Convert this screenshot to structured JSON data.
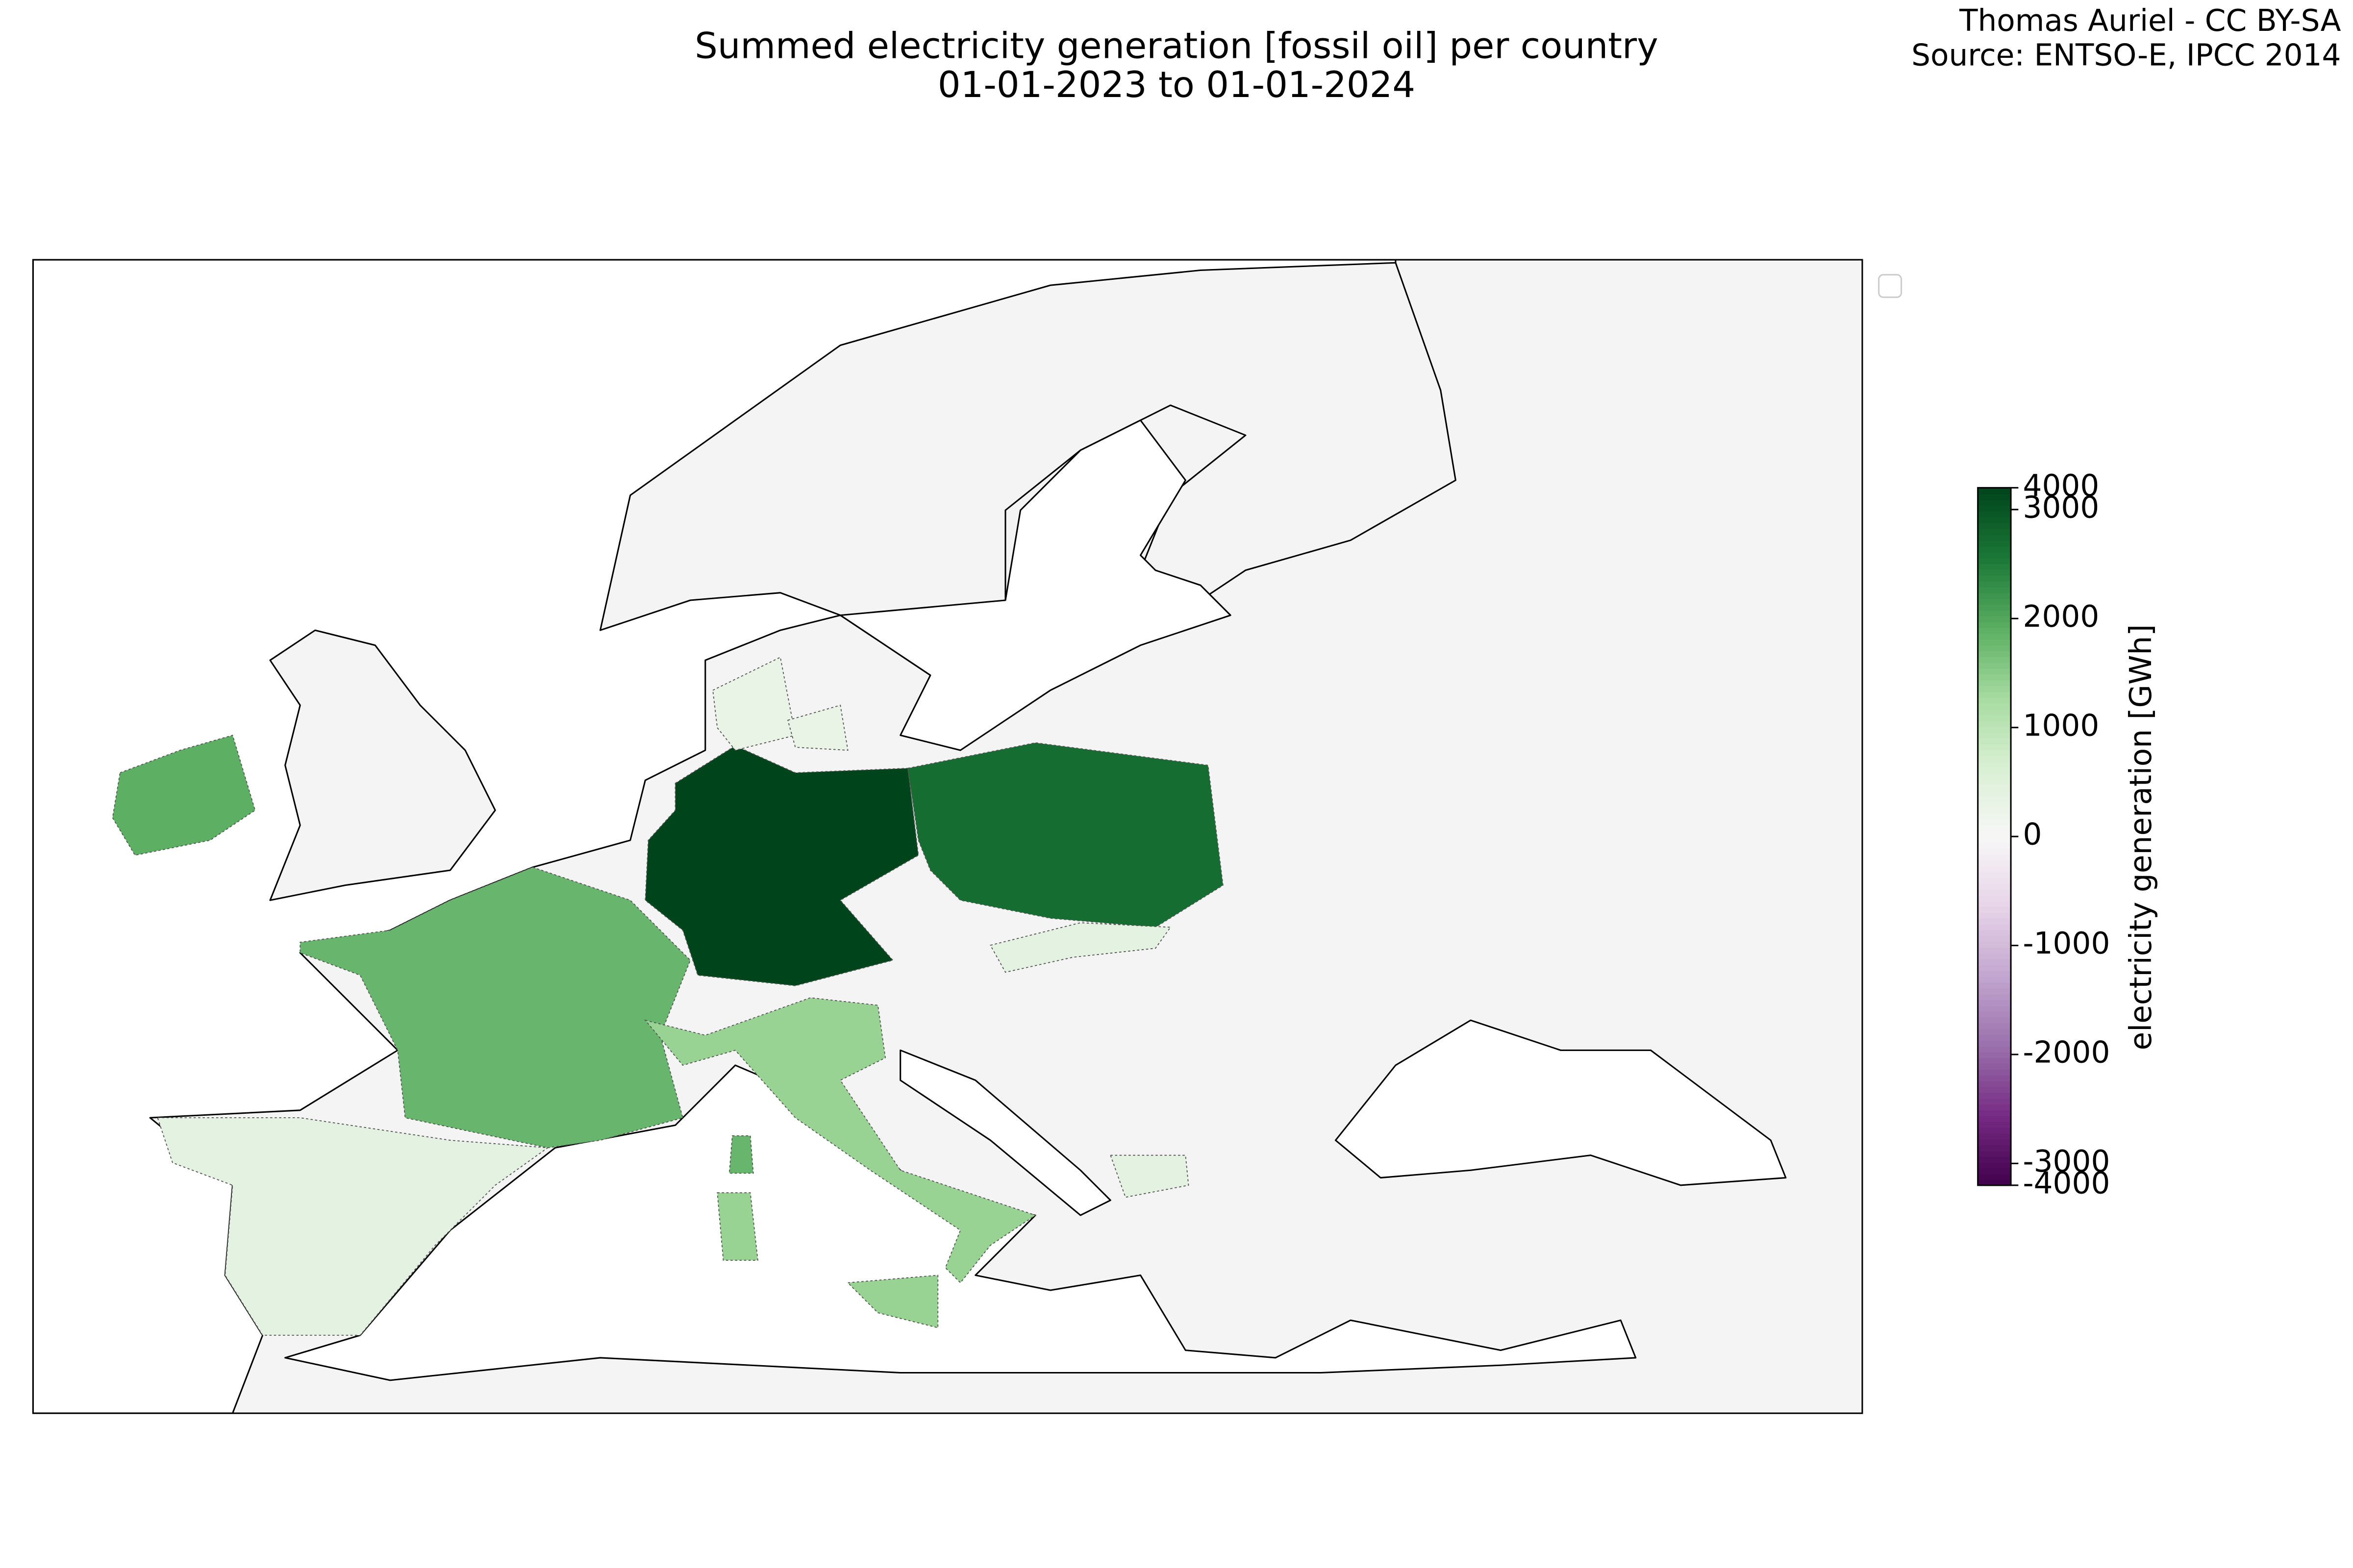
{
  "chart_data": {
    "type": "choropleth",
    "title": "Summed electricity generation [fossil oil] per country",
    "subtitle": "01-01-2023 to 01-01-2024",
    "credits": [
      "Thomas Auriel - CC BY-SA",
      "Source: ENTSO-E, IPCC 2014"
    ],
    "colorbar_label": "electricity generation [GWh]",
    "colormap": "PRGn",
    "values": [
      3500,
      2700,
      1900,
      1800,
      1400,
      400,
      300,
      400,
      400
    ],
    "ylim": [
      -3200,
      3200
    ],
    "yticks": [
      -3000,
      -2000,
      -1000,
      0,
      1000,
      2000,
      3000
    ],
    "ylim_labels": [
      -4000,
      4000
    ]
  }
}
